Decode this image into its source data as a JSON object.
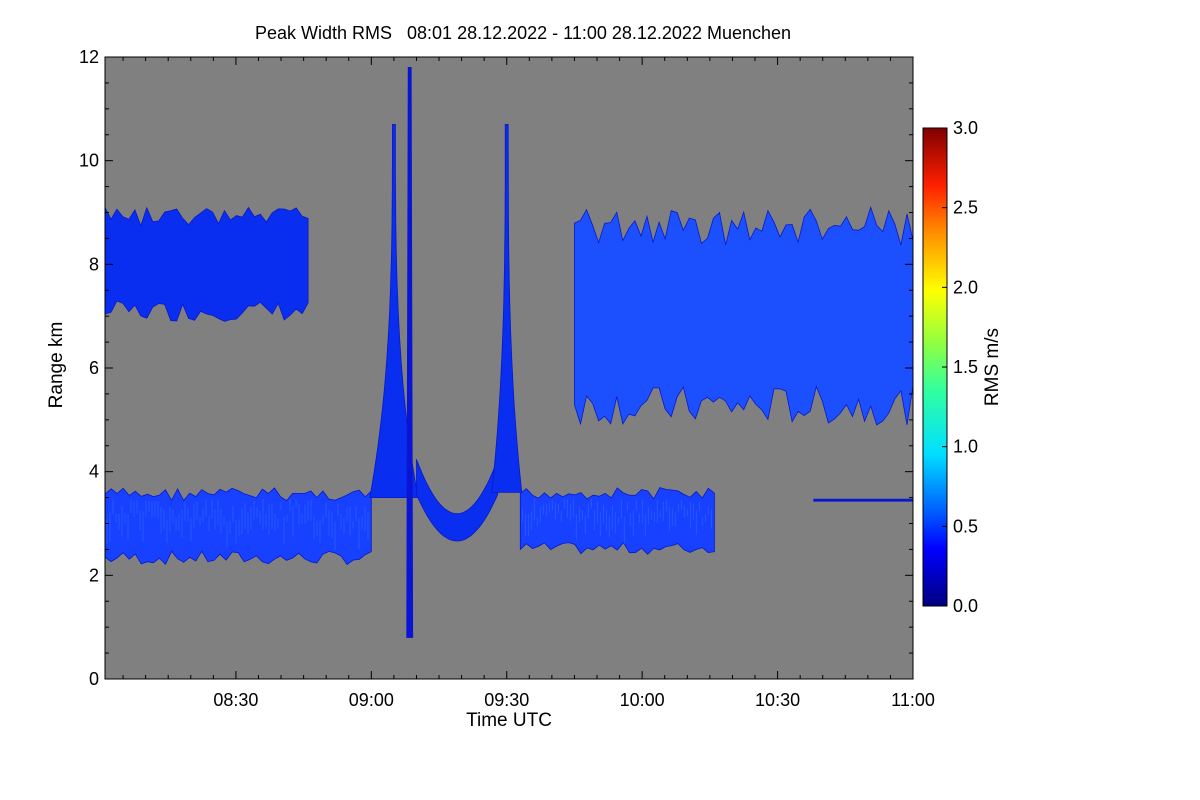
{
  "chart_data": {
    "type": "heatmap",
    "title": "Peak Width RMS   08:01 28.12.2022 - 11:00 28.12.2022 Muenchen",
    "xlabel": "Time UTC",
    "ylabel": "Range km",
    "xlim": [
      "08:01",
      "11:00"
    ],
    "ylim": [
      0,
      12
    ],
    "x_ticks": [
      "08:30",
      "09:00",
      "09:30",
      "10:00",
      "10:30",
      "11:00"
    ],
    "y_ticks": [
      "0",
      "2",
      "4",
      "6",
      "8",
      "10",
      "12"
    ],
    "background_color": "#808080",
    "colorbar": {
      "label": "RMS m/s",
      "range": [
        0.0,
        3.0
      ],
      "ticks": [
        "0.0",
        "0.5",
        "1.0",
        "1.5",
        "2.0",
        "2.5",
        "3.0"
      ],
      "colormap": "rainbow"
    },
    "regions": [
      {
        "name": "low-cloud-layer",
        "time_range": [
          "08:01",
          "09:00"
        ],
        "range_km": [
          2.2,
          3.7
        ],
        "rms_m_s": 0.4
      },
      {
        "name": "upper-cloud-early",
        "time_range": [
          "08:01",
          "08:46"
        ],
        "range_km": [
          6.9,
          9.1
        ],
        "rms_m_s": 0.3
      },
      {
        "name": "plume-left-arm",
        "time_range": [
          "09:00",
          "09:10"
        ],
        "range_km": [
          3.5,
          10.7
        ],
        "rms_m_s": 0.3
      },
      {
        "name": "plume-center-column",
        "time_range": [
          "09:07",
          "09:10"
        ],
        "range_km": [
          0.8,
          11.8
        ],
        "rms_m_s": 0.2
      },
      {
        "name": "plume-trough",
        "time_range": [
          "09:10",
          "09:28"
        ],
        "range_km": [
          2.7,
          4.2
        ],
        "rms_m_s": 0.3
      },
      {
        "name": "plume-right-arm",
        "time_range": [
          "09:27",
          "09:33"
        ],
        "range_km": [
          3.6,
          10.7
        ],
        "rms_m_s": 0.3
      },
      {
        "name": "low-cloud-layer-late",
        "time_range": [
          "09:33",
          "10:16"
        ],
        "range_km": [
          2.4,
          3.7
        ],
        "rms_m_s": 0.4
      },
      {
        "name": "upper-cloud-late",
        "time_range": [
          "09:45",
          "11:00"
        ],
        "range_km": [
          4.9,
          9.1
        ],
        "rms_m_s": 0.5
      },
      {
        "name": "thin-line",
        "time_range": [
          "10:38",
          "11:00"
        ],
        "range_km": [
          3.4,
          3.5
        ],
        "rms_m_s": 0.2
      }
    ]
  }
}
